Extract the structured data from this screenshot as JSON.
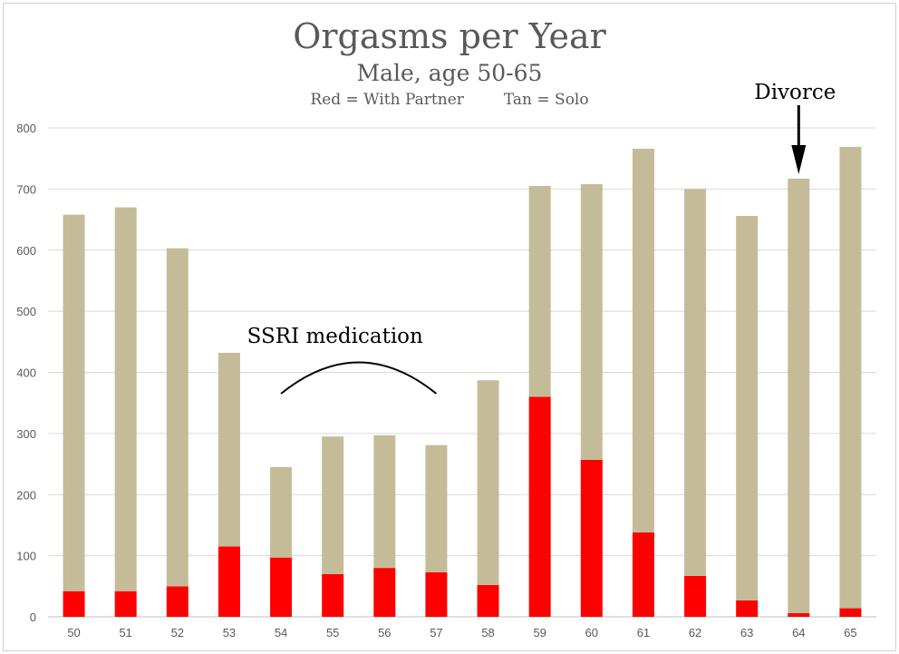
{
  "chart_data": {
    "type": "bar",
    "stacked": true,
    "title": "Orgasms per Year",
    "subtitle": "Male, age 50-65",
    "legend_text": [
      "Red = With Partner",
      "Tan = Solo"
    ],
    "categories": [
      "50",
      "51",
      "52",
      "53",
      "54",
      "55",
      "56",
      "57",
      "58",
      "59",
      "60",
      "61",
      "62",
      "63",
      "64",
      "65"
    ],
    "series": [
      {
        "name": "With Partner",
        "color": "#ff0000",
        "values": [
          42,
          42,
          50,
          115,
          97,
          70,
          80,
          73,
          52,
          360,
          257,
          138,
          67,
          27,
          6,
          14
        ]
      },
      {
        "name": "Solo",
        "color": "#c4bc99",
        "values": [
          616,
          628,
          553,
          317,
          148,
          225,
          217,
          208,
          335,
          345,
          451,
          628,
          633,
          629,
          711,
          755
        ]
      }
    ],
    "ylim": [
      0,
      800
    ],
    "yticks": [
      0,
      100,
      200,
      300,
      400,
      500,
      600,
      700,
      800
    ],
    "grid": true,
    "annotations": [
      {
        "text": "SSRI medication",
        "type": "arc",
        "x_from": "54",
        "x_to": "57"
      },
      {
        "text": "Divorce",
        "type": "arrow",
        "x": "64"
      }
    ]
  }
}
